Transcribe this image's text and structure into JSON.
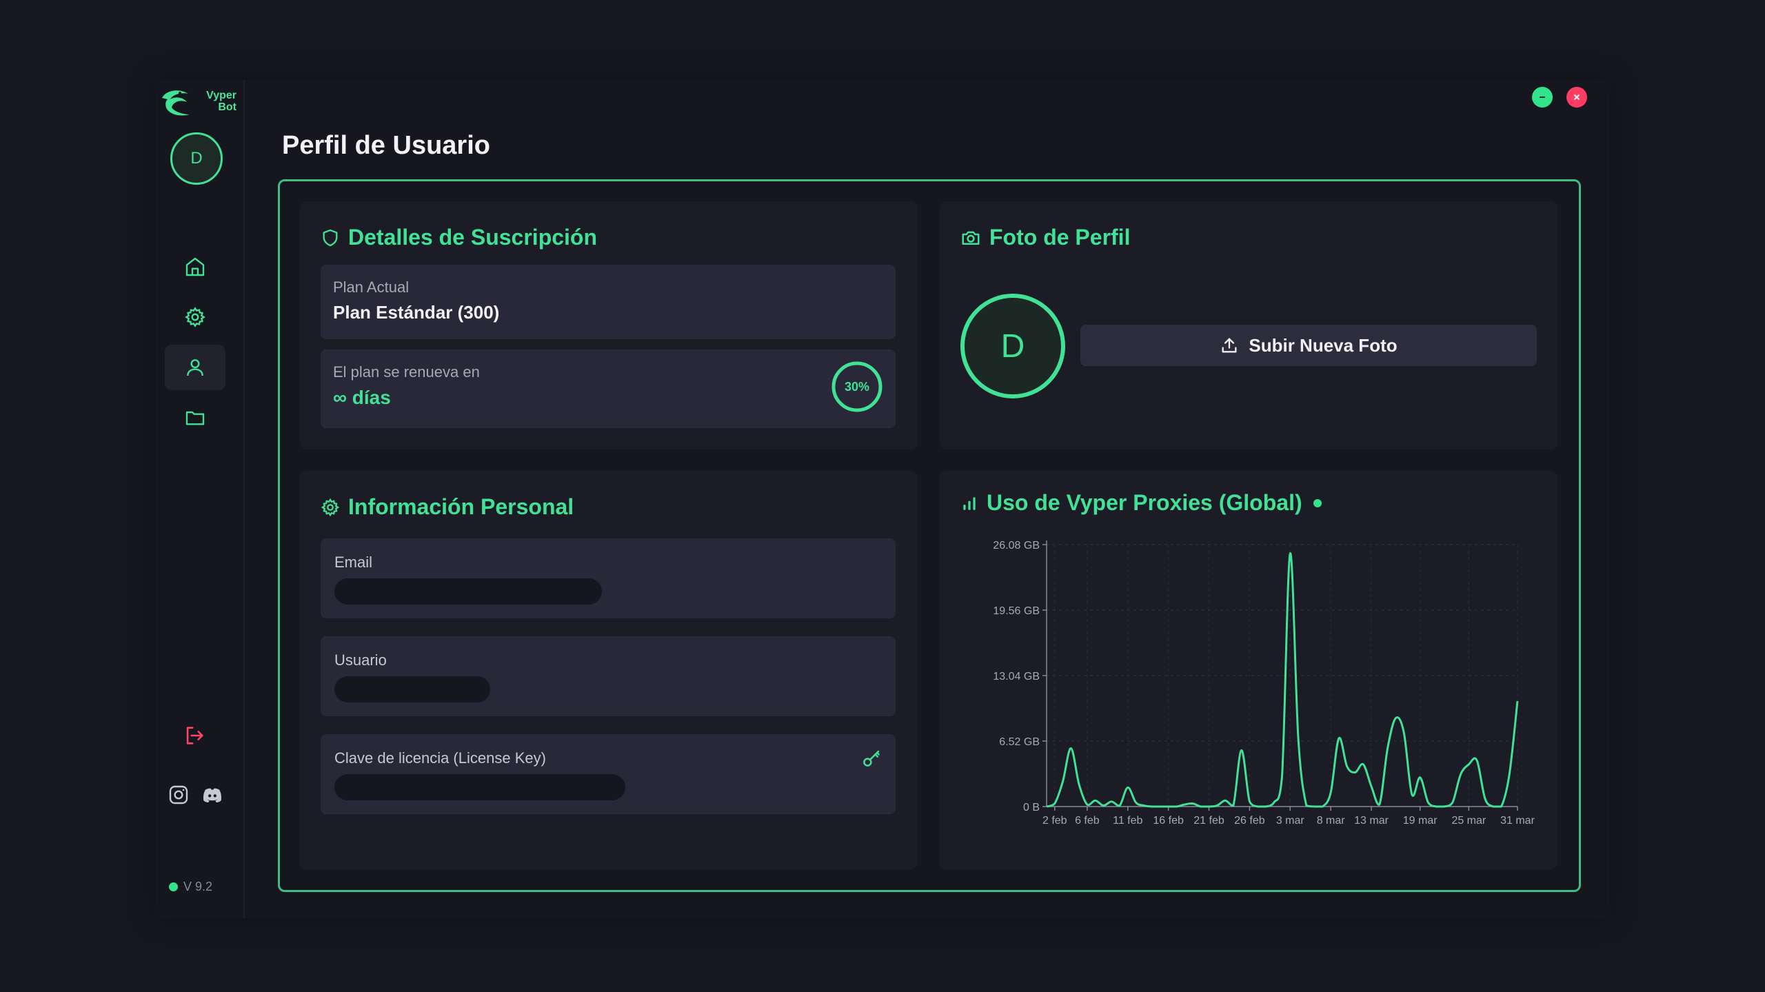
{
  "app": {
    "logo_text_1": "Vyper",
    "logo_text_2": "Bot",
    "version": "V 9.2",
    "accent": "#41e296",
    "danger": "#ff4466"
  },
  "sidebar": {
    "avatar_initial": "D",
    "items": [
      {
        "name": "home",
        "icon": "home-icon"
      },
      {
        "name": "settings",
        "icon": "gear-icon"
      },
      {
        "name": "profile",
        "icon": "user-icon",
        "active": true
      },
      {
        "name": "files",
        "icon": "folder-icon"
      }
    ]
  },
  "page": {
    "title": "Perfil de Usuario"
  },
  "subscription": {
    "title": "Detalles de Suscripción",
    "plan_label": "Plan Actual",
    "plan_value": "Plan Estándar (300)",
    "renew_label": "El plan se renueva en",
    "renew_value": "días",
    "renew_symbol": "∞",
    "progress_text": "30%",
    "progress_fraction": 0.3
  },
  "profile_photo": {
    "title": "Foto de Perfil",
    "avatar_initial": "D",
    "upload_label": "Subir Nueva Foto"
  },
  "personal": {
    "title": "Información Personal",
    "email_label": "Email",
    "user_label": "Usuario",
    "key_label": "Clave de licencia (License Key)"
  },
  "usage": {
    "title": "Uso de Vyper Proxies (Global)"
  },
  "chart_data": {
    "type": "line",
    "title": "Uso de Vyper Proxies (Global)",
    "xlabel": "",
    "ylabel": "",
    "y_ticks": [
      "0 B",
      "6.52 GB",
      "13.04 GB",
      "19.56 GB",
      "26.08 GB"
    ],
    "y_tick_values": [
      0,
      6.52,
      13.04,
      19.56,
      26.08
    ],
    "ylim": [
      0,
      26.08
    ],
    "x_tick_labels": [
      "2 feb",
      "6 feb",
      "11 feb",
      "16 feb",
      "21 feb",
      "26 feb",
      "3 mar",
      "8 mar",
      "13 mar",
      "19 mar",
      "25 mar",
      "31 mar"
    ],
    "x_tick_days": [
      1,
      5,
      10,
      15,
      20,
      25,
      30,
      35,
      40,
      46,
      52,
      58
    ],
    "xlim_days": [
      0,
      58
    ],
    "grid": true,
    "color": "#41e296",
    "series": [
      {
        "x_days": [
          0,
          1,
          2,
          3,
          4,
          5,
          6,
          7,
          8,
          9,
          10,
          11,
          12,
          13,
          14,
          15,
          16,
          17,
          18,
          19,
          20,
          21,
          22,
          23,
          24,
          25,
          26,
          27,
          28,
          29,
          30,
          31,
          32,
          33,
          34,
          35,
          36,
          37,
          38,
          39,
          40,
          41,
          42,
          43,
          44,
          45,
          46,
          47,
          48,
          49,
          50,
          51,
          52,
          53,
          54,
          55,
          56,
          57,
          58
        ],
        "values": [
          0,
          0.3,
          2.5,
          5.8,
          2.2,
          0.2,
          0.6,
          0.1,
          0.5,
          0.1,
          1.9,
          0.4,
          0.1,
          0,
          0,
          0,
          0,
          0.2,
          0.3,
          0,
          0,
          0.1,
          0.6,
          0.1,
          5.6,
          0.5,
          0,
          0,
          0.4,
          3.0,
          25.2,
          6.8,
          0.1,
          0,
          0,
          1.4,
          6.8,
          4.0,
          3.4,
          4.2,
          2.0,
          0.2,
          5.8,
          8.8,
          7.4,
          1.2,
          2.9,
          0.4,
          0,
          0,
          0.4,
          3.2,
          4.2,
          4.6,
          0.8,
          0,
          0,
          3.2,
          10.5
        ]
      }
    ]
  }
}
